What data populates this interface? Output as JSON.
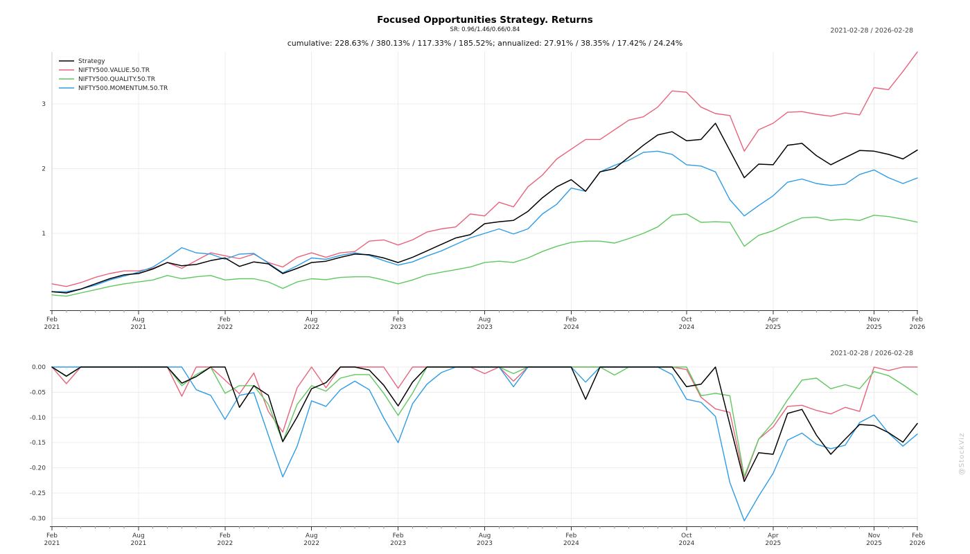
{
  "header": {
    "title": "Focused Opportunities Strategy. Returns",
    "subtitle": "SR: 0.96/1.46/0.66/0.84",
    "stats_line": "cumulative: 228.63% / 380.13% / 117.33% / 185.52%; annualized: 27.91% / 38.35% / 17.42% / 24.24%",
    "date_range": "2021-02-28 / 2026-02-28"
  },
  "watermark": "@StockViz",
  "colors": {
    "strategy": "#000000",
    "value": "#e8637a",
    "quality": "#5fc85f",
    "momentum": "#2d9ce6",
    "grid": "#ececec",
    "axis": "#333333",
    "minor_tick": "#999999",
    "spine": "#cccccc",
    "tick_label": "#333333"
  },
  "legend": [
    {
      "name": "strategy",
      "label": "Strategy",
      "color": "#000000"
    },
    {
      "name": "value",
      "label": "NIFTY500.VALUE.50.TR",
      "color": "#e8637a"
    },
    {
      "name": "quality",
      "label": "NIFTY500.QUALITY.50.TR",
      "color": "#5fc85f"
    },
    {
      "name": "momentum",
      "label": "NIFTY500.MOMENTUM.50.TR",
      "color": "#2d9ce6"
    }
  ],
  "chart_data": [
    {
      "type": "line",
      "title": "cumulative returns",
      "legend_position": "top-left",
      "grid": true,
      "x": [
        "2021-02",
        "2021-03",
        "2021-04",
        "2021-05",
        "2021-06",
        "2021-07",
        "2021-08",
        "2021-09",
        "2021-10",
        "2021-11",
        "2021-12",
        "2022-01",
        "2022-02",
        "2022-03",
        "2022-04",
        "2022-05",
        "2022-06",
        "2022-07",
        "2022-08",
        "2022-09",
        "2022-10",
        "2022-11",
        "2022-12",
        "2023-01",
        "2023-02",
        "2023-03",
        "2023-04",
        "2023-05",
        "2023-06",
        "2023-07",
        "2023-08",
        "2023-09",
        "2023-10",
        "2023-11",
        "2023-12",
        "2024-01",
        "2024-02",
        "2024-03",
        "2024-04",
        "2024-05",
        "2024-06",
        "2024-07",
        "2024-08",
        "2024-09",
        "2024-10",
        "2024-11",
        "2024-12",
        "2025-01",
        "2025-02",
        "2025-03",
        "2025-04",
        "2025-05",
        "2025-06",
        "2025-07",
        "2025-08",
        "2025-09",
        "2025-10",
        "2025-11",
        "2025-12",
        "2026-01",
        "2026-02"
      ],
      "x_ticks": [
        {
          "i": 0,
          "month": "Feb",
          "year": "2021"
        },
        {
          "i": 6,
          "month": "Aug",
          "year": "2021"
        },
        {
          "i": 12,
          "month": "Feb",
          "year": "2022"
        },
        {
          "i": 18,
          "month": "Aug",
          "year": "2022"
        },
        {
          "i": 24,
          "month": "Feb",
          "year": "2023"
        },
        {
          "i": 30,
          "month": "Aug",
          "year": "2023"
        },
        {
          "i": 36,
          "month": "Feb",
          "year": "2024"
        },
        {
          "i": 44,
          "month": "Oct",
          "year": "2024"
        },
        {
          "i": 50,
          "month": "Apr",
          "year": "2025"
        },
        {
          "i": 57,
          "month": "Nov",
          "year": "2025"
        },
        {
          "i": 60,
          "month": "Feb",
          "year": "2026"
        }
      ],
      "y_ticks": [
        {
          "v": 1,
          "label": "1"
        },
        {
          "v": 2,
          "label": "2"
        },
        {
          "v": 3,
          "label": "3"
        }
      ],
      "ylim": [
        -0.187,
        3.802
      ],
      "series": [
        {
          "name": "strategy",
          "label": "Strategy",
          "color": "#000000",
          "values": [
            0.1,
            0.08,
            0.14,
            0.22,
            0.3,
            0.36,
            0.38,
            0.45,
            0.55,
            0.5,
            0.52,
            0.58,
            0.62,
            0.49,
            0.56,
            0.53,
            0.38,
            0.46,
            0.55,
            0.57,
            0.63,
            0.68,
            0.67,
            0.62,
            0.55,
            0.63,
            0.73,
            0.83,
            0.93,
            0.98,
            1.15,
            1.18,
            1.2,
            1.34,
            1.55,
            1.72,
            1.83,
            1.65,
            1.95,
            2.0,
            2.18,
            2.36,
            2.52,
            2.57,
            2.43,
            2.45,
            2.7,
            2.28,
            1.86,
            2.07,
            2.06,
            2.36,
            2.39,
            2.2,
            2.06,
            2.17,
            2.28,
            2.27,
            2.22,
            2.15,
            2.2863
          ]
        },
        {
          "name": "value",
          "label": "NIFTY500.VALUE.50.TR",
          "color": "#e8637a",
          "values": [
            0.22,
            0.18,
            0.24,
            0.32,
            0.38,
            0.42,
            0.42,
            0.46,
            0.55,
            0.46,
            0.58,
            0.7,
            0.655,
            0.61,
            0.68,
            0.55,
            0.48,
            0.63,
            0.7,
            0.63,
            0.7,
            0.72,
            0.88,
            0.9,
            0.82,
            0.9,
            1.02,
            1.07,
            1.1,
            1.3,
            1.27,
            1.48,
            1.41,
            1.72,
            1.9,
            2.15,
            2.3,
            2.45,
            2.45,
            2.6,
            2.75,
            2.8,
            2.95,
            3.2,
            3.18,
            2.95,
            2.85,
            2.82,
            2.27,
            2.6,
            2.7,
            2.87,
            2.88,
            2.84,
            2.81,
            2.86,
            2.83,
            3.25,
            3.22,
            3.5,
            3.8013
          ]
        },
        {
          "name": "quality",
          "label": "NIFTY500.QUALITY.50.TR",
          "color": "#5fc85f",
          "values": [
            0.05,
            0.03,
            0.08,
            0.13,
            0.18,
            0.22,
            0.25,
            0.28,
            0.35,
            0.3,
            0.33,
            0.35,
            0.28,
            0.3,
            0.3,
            0.25,
            0.15,
            0.25,
            0.3,
            0.285,
            0.32,
            0.33,
            0.33,
            0.28,
            0.22,
            0.28,
            0.36,
            0.4,
            0.44,
            0.48,
            0.55,
            0.57,
            0.55,
            0.62,
            0.72,
            0.8,
            0.86,
            0.88,
            0.88,
            0.85,
            0.92,
            1.0,
            1.1,
            1.28,
            1.3,
            1.17,
            1.18,
            1.17,
            0.8,
            0.97,
            1.04,
            1.15,
            1.24,
            1.25,
            1.2,
            1.22,
            1.2,
            1.28,
            1.26,
            1.22,
            1.1733
          ]
        },
        {
          "name": "momentum",
          "label": "NIFTY500.MOMENTUM.50.TR",
          "color": "#2d9ce6",
          "values": [
            0.1,
            0.1,
            0.14,
            0.2,
            0.28,
            0.34,
            0.4,
            0.48,
            0.62,
            0.78,
            0.7,
            0.68,
            0.6,
            0.68,
            0.69,
            0.54,
            0.39,
            0.5,
            0.62,
            0.6,
            0.66,
            0.7,
            0.66,
            0.58,
            0.51,
            0.56,
            0.65,
            0.73,
            0.83,
            0.93,
            1.0,
            1.07,
            0.99,
            1.07,
            1.3,
            1.45,
            1.7,
            1.65,
            1.95,
            2.05,
            2.13,
            2.25,
            2.27,
            2.22,
            2.06,
            2.04,
            1.95,
            1.52,
            1.27,
            1.43,
            1.58,
            1.79,
            1.84,
            1.77,
            1.74,
            1.76,
            1.91,
            1.98,
            1.86,
            1.77,
            1.8552
          ]
        }
      ]
    },
    {
      "type": "line",
      "title": "drawdowns",
      "grid": true,
      "x": [
        "2021-02",
        "2021-03",
        "2021-04",
        "2021-05",
        "2021-06",
        "2021-07",
        "2021-08",
        "2021-09",
        "2021-10",
        "2021-11",
        "2021-12",
        "2022-01",
        "2022-02",
        "2022-03",
        "2022-04",
        "2022-05",
        "2022-06",
        "2022-07",
        "2022-08",
        "2022-09",
        "2022-10",
        "2022-11",
        "2022-12",
        "2023-01",
        "2023-02",
        "2023-03",
        "2023-04",
        "2023-05",
        "2023-06",
        "2023-07",
        "2023-08",
        "2023-09",
        "2023-10",
        "2023-11",
        "2023-12",
        "2024-01",
        "2024-02",
        "2024-03",
        "2024-04",
        "2024-05",
        "2024-06",
        "2024-07",
        "2024-08",
        "2024-09",
        "2024-10",
        "2024-11",
        "2024-12",
        "2025-01",
        "2025-02",
        "2025-03",
        "2025-04",
        "2025-05",
        "2025-06",
        "2025-07",
        "2025-08",
        "2025-09",
        "2025-10",
        "2025-11",
        "2025-12",
        "2026-01",
        "2026-02"
      ],
      "x_ticks": [
        {
          "i": 0,
          "month": "Feb",
          "year": "2021"
        },
        {
          "i": 6,
          "month": "Aug",
          "year": "2021"
        },
        {
          "i": 12,
          "month": "Feb",
          "year": "2022"
        },
        {
          "i": 18,
          "month": "Aug",
          "year": "2022"
        },
        {
          "i": 24,
          "month": "Feb",
          "year": "2023"
        },
        {
          "i": 30,
          "month": "Aug",
          "year": "2023"
        },
        {
          "i": 36,
          "month": "Feb",
          "year": "2024"
        },
        {
          "i": 44,
          "month": "Oct",
          "year": "2024"
        },
        {
          "i": 50,
          "month": "Apr",
          "year": "2025"
        },
        {
          "i": 57,
          "month": "Nov",
          "year": "2025"
        },
        {
          "i": 60,
          "month": "Feb",
          "year": "2026"
        }
      ],
      "y_ticks": [
        {
          "v": 0,
          "label": "0.00"
        },
        {
          "v": -0.05,
          "label": "-0.05"
        },
        {
          "v": -0.1,
          "label": "-0.10"
        },
        {
          "v": -0.15,
          "label": "-0.15"
        },
        {
          "v": -0.2,
          "label": "-0.20"
        },
        {
          "v": -0.25,
          "label": "-0.25"
        },
        {
          "v": -0.3,
          "label": "-0.30"
        }
      ],
      "ylim": [
        -0.3159,
        0
      ],
      "series": [
        {
          "name": "strategy",
          "label": "Strategy",
          "color": "#000000",
          "values": [
            0,
            -0.018,
            0,
            0,
            0,
            0,
            0,
            0,
            0,
            -0.032,
            -0.019,
            0,
            0,
            -0.08,
            -0.037,
            -0.056,
            -0.148,
            -0.099,
            -0.043,
            -0.031,
            0,
            0,
            -0.006,
            -0.036,
            -0.077,
            -0.03,
            0,
            0,
            0,
            0,
            0,
            0,
            0,
            0,
            0,
            0,
            0,
            -0.064,
            0,
            0,
            0,
            0,
            0,
            0,
            -0.039,
            -0.034,
            0,
            -0.114,
            -0.227,
            -0.17,
            -0.173,
            -0.092,
            -0.084,
            -0.135,
            -0.173,
            -0.143,
            -0.114,
            -0.116,
            -0.13,
            -0.149,
            -0.112
          ]
        },
        {
          "name": "value",
          "label": "NIFTY500.VALUE.50.TR",
          "color": "#e8637a",
          "values": [
            0,
            -0.033,
            0,
            0,
            0,
            0,
            0,
            0,
            0,
            -0.058,
            0,
            0,
            -0.026,
            -0.053,
            -0.012,
            -0.088,
            -0.129,
            -0.041,
            0,
            -0.041,
            0,
            0,
            0,
            0,
            -0.042,
            0,
            0,
            0,
            0,
            0,
            -0.013,
            0,
            -0.028,
            0,
            0,
            0,
            0,
            0,
            0,
            0,
            0,
            0,
            0,
            0,
            -0.005,
            -0.06,
            -0.083,
            -0.09,
            -0.221,
            -0.143,
            -0.119,
            -0.078,
            -0.076,
            -0.086,
            -0.093,
            -0.08,
            -0.088,
            0,
            -0.007,
            0,
            0
          ]
        },
        {
          "name": "quality",
          "label": "NIFTY500.QUALITY.50.TR",
          "color": "#5fc85f",
          "values": [
            0,
            -0.019,
            0,
            0,
            0,
            0,
            0,
            0,
            0,
            -0.037,
            -0.015,
            0,
            -0.052,
            -0.037,
            -0.037,
            -0.074,
            -0.148,
            -0.074,
            -0.037,
            -0.048,
            -0.022,
            -0.015,
            -0.015,
            -0.052,
            -0.096,
            -0.052,
            0,
            0,
            0,
            0,
            0,
            0,
            -0.013,
            0,
            0,
            0,
            0,
            0,
            0,
            -0.016,
            0,
            0,
            0,
            0,
            0,
            -0.057,
            -0.052,
            -0.057,
            -0.217,
            -0.143,
            -0.11,
            -0.065,
            -0.026,
            -0.022,
            -0.043,
            -0.035,
            -0.043,
            -0.009,
            -0.017,
            -0.035,
            -0.055
          ]
        },
        {
          "name": "momentum",
          "label": "NIFTY500.MOMENTUM.50.TR",
          "color": "#2d9ce6",
          "values": [
            0,
            0,
            0,
            0,
            0,
            0,
            0,
            0,
            0,
            0,
            -0.045,
            -0.056,
            -0.104,
            -0.056,
            -0.051,
            -0.135,
            -0.218,
            -0.157,
            -0.067,
            -0.078,
            -0.045,
            -0.028,
            -0.045,
            -0.101,
            -0.15,
            -0.073,
            -0.034,
            -0.011,
            0,
            0,
            0,
            0,
            -0.039,
            0,
            0,
            0,
            0,
            -0.03,
            0,
            0,
            0,
            0,
            0,
            -0.015,
            -0.064,
            -0.07,
            -0.098,
            -0.229,
            -0.305,
            -0.256,
            -0.211,
            -0.145,
            -0.131,
            -0.153,
            -0.162,
            -0.155,
            -0.11,
            -0.095,
            -0.131,
            -0.157,
            -0.133
          ]
        }
      ]
    }
  ]
}
